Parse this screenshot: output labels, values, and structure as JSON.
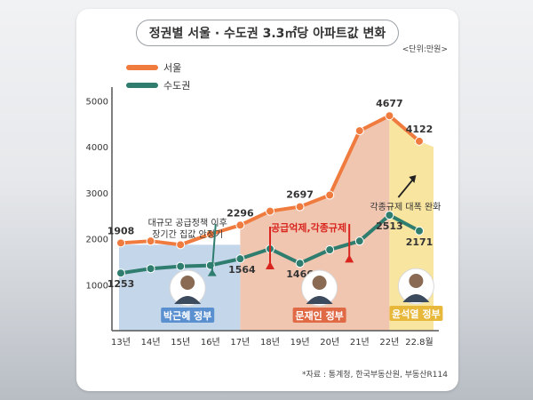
{
  "title": "정권별 서울 · 수도권 3.3㎡당 아파트값 변화",
  "unit": "<단위:만원>",
  "source": "*자료 : 통계청, 한국부동산원, 부동산R114",
  "colors": {
    "seoul": "#f07b3f",
    "capital": "#2e7d6e",
    "park_bg": "#c4d6ea",
    "moon_bg": "#f1c6b1",
    "yoon_bg": "#f8e5a0",
    "park_label": "#5a8fd0",
    "moon_label": "#e06a45",
    "yoon_label": "#e8b83a"
  },
  "annotations": {
    "park": "대규모 공급정책 이후\n장기간 집값 안정기",
    "moon": "공급억제,각종규제",
    "yoon": "각종규제 대폭 완화"
  },
  "governments": {
    "park": "박근혜 정부",
    "moon": "문재인 정부",
    "yoon": "윤석열 정부"
  },
  "chart_data": {
    "type": "line",
    "categories": [
      "13년",
      "14년",
      "15년",
      "16년",
      "17년",
      "18년",
      "19년",
      "20년",
      "21년",
      "22년",
      "22.8월"
    ],
    "yticks": [
      1000,
      2000,
      3000,
      4000,
      5000
    ],
    "ylim": [
      0,
      5600
    ],
    "series": [
      {
        "name": "서울",
        "values": [
          1908,
          1950,
          1870,
          2100,
          2296,
          2600,
          2697,
          2950,
          4350,
          4677,
          4122
        ]
      },
      {
        "name": "수도권",
        "values": [
          1253,
          1350,
          1400,
          1420,
          1564,
          1780,
          1466,
          1760,
          1950,
          2513,
          2171
        ]
      }
    ],
    "data_labels": [
      {
        "series": 0,
        "index": 0,
        "text": "1908"
      },
      {
        "series": 0,
        "index": 4,
        "text": "2296"
      },
      {
        "series": 0,
        "index": 6,
        "text": "2697"
      },
      {
        "series": 0,
        "index": 9,
        "text": "4677"
      },
      {
        "series": 0,
        "index": 10,
        "text": "4122"
      },
      {
        "series": 1,
        "index": 0,
        "text": "1253"
      },
      {
        "series": 1,
        "index": 4,
        "text": "1564"
      },
      {
        "series": 1,
        "index": 6,
        "text": "1466"
      },
      {
        "series": 1,
        "index": 9,
        "text": "2513"
      },
      {
        "series": 1,
        "index": 10,
        "text": "2171"
      }
    ]
  }
}
